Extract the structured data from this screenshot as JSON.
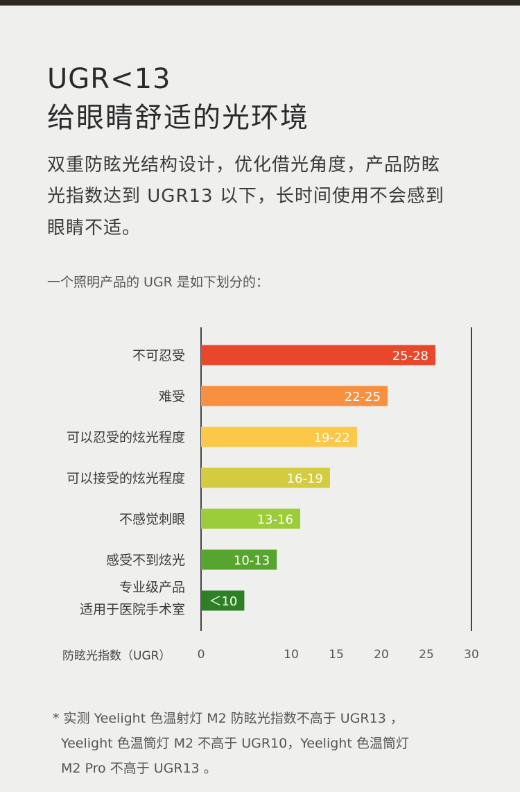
{
  "headline": {
    "line1": "UGR<13",
    "line2": "给眼睛舒适的光环境"
  },
  "paragraph": {
    "line1": "双重防眩光结构设计，优化借光角度，产品防眩",
    "line2": "光指数达到 UGR13 以下，长时间使用不会感到",
    "line3": "眼睛不适。"
  },
  "intro": "一个照明产品的 UGR 是如下划分的：",
  "chart_data": {
    "type": "bar",
    "orientation": "horizontal",
    "xlabel": "防眩光指数（UGR）",
    "xlim": [
      0,
      30
    ],
    "xticks": [
      0,
      10,
      15,
      20,
      25,
      30
    ],
    "grid": false,
    "categories": [
      [
        "不可忍受"
      ],
      [
        "难受"
      ],
      [
        "可以忍受的炫光程度"
      ],
      [
        "可以接受的炫光程度"
      ],
      [
        "不感觉刺眼"
      ],
      [
        "感受不到炫光"
      ],
      [
        "专业级产品",
        "适用于医院手术室"
      ]
    ],
    "bars": [
      {
        "label": "25-28",
        "value": 26,
        "color": "#e8472b"
      },
      {
        "label": "22-25",
        "value": 20.7,
        "color": "#f8903f"
      },
      {
        "label": "19-22",
        "value": 17.3,
        "color": "#fbc84a"
      },
      {
        "label": "16-19",
        "value": 14.3,
        "color": "#d4cc40"
      },
      {
        "label": "13-16",
        "value": 11.0,
        "color": "#9bcc3a"
      },
      {
        "label": "10-13",
        "value": 8.4,
        "color": "#57a52e"
      },
      {
        "label": "＜10",
        "value": 4.8,
        "color": "#2e8025"
      }
    ]
  },
  "footnote": {
    "line1": "* 实测 Yeelight 色温射灯 M2 防眩光指数不高于 UGR13 ，",
    "line2": "Yeelight 色温筒灯 M2 不高于 UGR10，Yeelight 色温筒灯",
    "line3": "M2 Pro 不高于 UGR13 。"
  }
}
